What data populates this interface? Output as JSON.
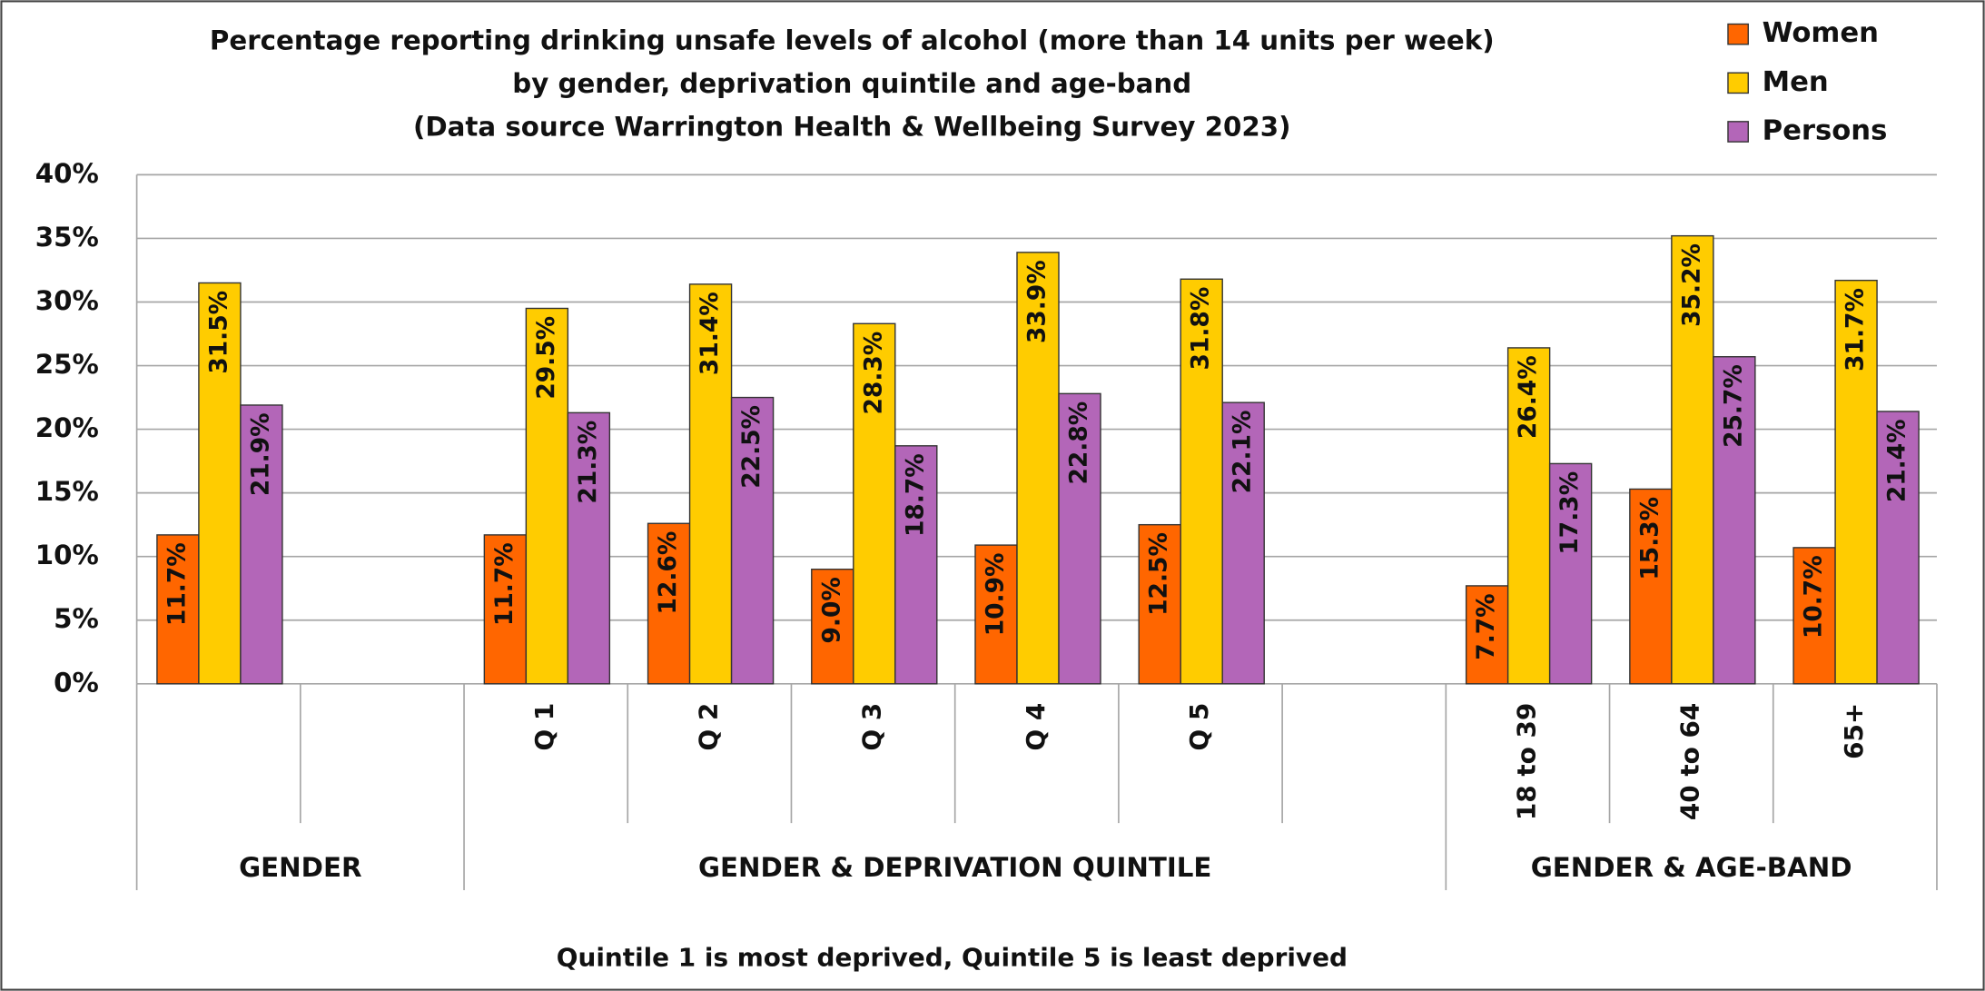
{
  "chart_data": {
    "type": "bar",
    "title": [
      "Percentage reporting drinking unsafe levels of alcohol (more than 14 units per week)",
      "by gender, deprivation quintile and age-band",
      "(Data source Warrington Health & Wellbeing Survey 2023)"
    ],
    "categories": [
      null,
      null,
      "Q 1",
      "Q 2",
      "Q 3",
      "Q 4",
      "Q 5",
      null,
      "18 to 39",
      "40 to 64",
      "65+"
    ],
    "groups": [
      "GENDER",
      "GENDER & DEPRIVATION QUINTILE",
      "GENDER & AGE-BAND"
    ],
    "series": [
      {
        "name": "Women",
        "color": "#ff6600",
        "values": [
          11.7,
          null,
          11.7,
          12.6,
          9.0,
          10.9,
          12.5,
          null,
          7.7,
          15.3,
          10.7
        ],
        "value_labels": [
          "11.7%",
          null,
          "11.7%",
          "12.6%",
          "9.0%",
          "10.9%",
          "12.5%",
          null,
          "7.7%",
          "15.3%",
          "10.7%"
        ]
      },
      {
        "name": "Men",
        "color": "#ffcc00",
        "values": [
          31.5,
          null,
          29.5,
          31.4,
          28.3,
          33.9,
          31.8,
          null,
          26.4,
          35.2,
          31.7
        ],
        "value_labels": [
          "31.5%",
          null,
          "29.5%",
          "31.4%",
          "28.3%",
          "33.9%",
          "31.8%",
          null,
          "26.4%",
          "35.2%",
          "31.7%"
        ]
      },
      {
        "name": "Persons",
        "color": "#b366b8",
        "values": [
          21.9,
          null,
          21.3,
          22.5,
          18.7,
          22.8,
          22.1,
          null,
          17.3,
          25.7,
          21.4
        ],
        "value_labels": [
          "21.9%",
          null,
          "21.3%",
          "22.5%",
          "18.7%",
          "22.8%",
          "22.1%",
          null,
          "17.3%",
          "25.7%",
          "21.4%"
        ]
      }
    ],
    "ylim": [
      0,
      40
    ],
    "yticks": [
      {
        "value": 0,
        "label": "0%"
      },
      {
        "value": 5,
        "label": "5%"
      },
      {
        "value": 10,
        "label": "10%"
      },
      {
        "value": 15,
        "label": "15%"
      },
      {
        "value": 20,
        "label": "20%"
      },
      {
        "value": 25,
        "label": "25%"
      },
      {
        "value": 30,
        "label": "30%"
      },
      {
        "value": 35,
        "label": "35%"
      },
      {
        "value": 40,
        "label": "40%"
      }
    ],
    "grid": true,
    "legend": "top-right",
    "note": "Quintile 1 is most deprived, Quintile 5 is least deprived"
  }
}
